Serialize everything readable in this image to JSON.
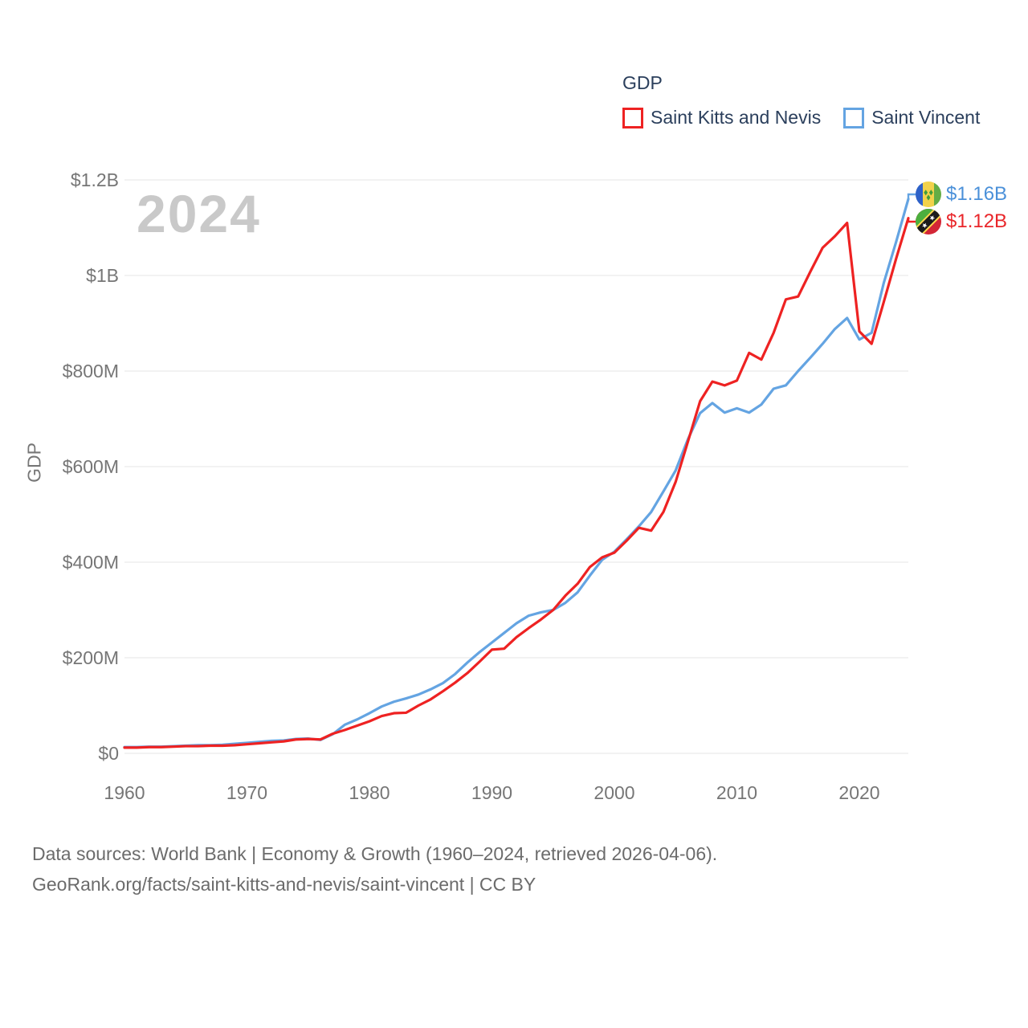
{
  "legend": {
    "title": "GDP",
    "items": [
      {
        "label": "Saint Kitts and Nevis",
        "color": "#ee2222"
      },
      {
        "label": "Saint Vincent",
        "color": "#64a4e2"
      }
    ]
  },
  "watermark": "2024",
  "y_axis": {
    "title": "GDP",
    "ticks": [
      {
        "value": 0,
        "label": "$0"
      },
      {
        "value": 200,
        "label": "$200M"
      },
      {
        "value": 400,
        "label": "$400M"
      },
      {
        "value": 600,
        "label": "$600M"
      },
      {
        "value": 800,
        "label": "$800M"
      },
      {
        "value": 1000,
        "label": "$1B"
      },
      {
        "value": 1200,
        "label": "$1.2B"
      }
    ]
  },
  "x_axis": {
    "ticks": [
      {
        "value": 1960,
        "label": "1960"
      },
      {
        "value": 1970,
        "label": "1970"
      },
      {
        "value": 1980,
        "label": "1980"
      },
      {
        "value": 1990,
        "label": "1990"
      },
      {
        "value": 2000,
        "label": "2000"
      },
      {
        "value": 2010,
        "label": "2010"
      },
      {
        "value": 2020,
        "label": "2020"
      }
    ]
  },
  "end_labels": [
    {
      "series": "Saint Vincent",
      "label": "$1.16B",
      "color": "#4a90d9",
      "flag": "saint-vincent"
    },
    {
      "series": "Saint Kitts and Nevis",
      "label": "$1.12B",
      "color": "#e9262a",
      "flag": "saint-kitts-and-nevis"
    }
  ],
  "footer": {
    "line1": "Data sources: World Bank | Economy & Growth (1960–2024, retrieved 2026-04-06).",
    "line2": "GeoRank.org/facts/saint-kitts-and-nevis/saint-vincent | CC BY"
  },
  "chart_data": {
    "type": "line",
    "title": "GDP",
    "units": "millions of current USD",
    "xlabel": "",
    "ylabel": "GDP",
    "xlim": [
      1960,
      2024
    ],
    "ylim": [
      0,
      1200
    ],
    "grid": "horizontal",
    "legend_position": "top-right",
    "x": [
      1960,
      1961,
      1962,
      1963,
      1964,
      1965,
      1966,
      1967,
      1968,
      1969,
      1970,
      1971,
      1972,
      1973,
      1974,
      1975,
      1976,
      1977,
      1978,
      1979,
      1980,
      1981,
      1982,
      1983,
      1984,
      1985,
      1986,
      1987,
      1988,
      1989,
      1990,
      1991,
      1992,
      1993,
      1994,
      1995,
      1996,
      1997,
      1998,
      1999,
      2000,
      2001,
      2002,
      2003,
      2004,
      2005,
      2006,
      2007,
      2008,
      2009,
      2010,
      2011,
      2012,
      2013,
      2014,
      2015,
      2016,
      2017,
      2018,
      2019,
      2020,
      2021,
      2022,
      2023,
      2024
    ],
    "series": [
      {
        "name": "Saint Kitts and Nevis",
        "color": "#ee2222",
        "end_value_label": "$1.12B",
        "values": [
          12,
          12,
          13,
          13,
          14,
          15,
          15,
          16,
          16,
          17,
          19,
          21,
          23,
          25,
          29,
          30,
          29,
          41,
          49,
          58,
          67,
          78,
          84,
          85,
          100,
          113,
          130,
          148,
          168,
          192,
          217,
          219,
          243,
          262,
          280,
          300,
          330,
          355,
          390,
          410,
          420,
          445,
          472,
          466,
          505,
          568,
          652,
          737,
          778,
          770,
          780,
          838,
          824,
          880,
          950,
          956,
          1008,
          1058,
          1082,
          1110,
          883,
          857,
          945,
          1035,
          1120
        ]
      },
      {
        "name": "Saint Vincent",
        "color": "#64a4e2",
        "end_value_label": "$1.16B",
        "values": [
          13,
          13,
          14,
          14,
          15,
          16,
          17,
          17,
          18,
          20,
          22,
          24,
          26,
          27,
          30,
          31,
          28,
          40,
          60,
          71,
          84,
          98,
          108,
          115,
          123,
          134,
          147,
          166,
          190,
          212,
          232,
          252,
          272,
          288,
          295,
          300,
          315,
          337,
          372,
          405,
          422,
          448,
          475,
          505,
          548,
          592,
          657,
          712,
          733,
          713,
          722,
          713,
          730,
          763,
          770,
          800,
          828,
          857,
          888,
          911,
          866,
          880,
          985,
          1070,
          1160
        ]
      }
    ]
  }
}
